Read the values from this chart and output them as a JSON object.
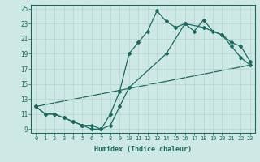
{
  "xlabel": "Humidex (Indice chaleur)",
  "xlim": [
    -0.5,
    23.5
  ],
  "ylim": [
    8.5,
    25.5
  ],
  "xticks": [
    0,
    1,
    2,
    3,
    4,
    5,
    6,
    7,
    8,
    9,
    10,
    11,
    12,
    13,
    14,
    15,
    16,
    17,
    18,
    19,
    20,
    21,
    22,
    23
  ],
  "yticks": [
    9,
    11,
    13,
    15,
    17,
    19,
    21,
    23,
    25
  ],
  "bg_color": "#cde8e5",
  "grid_color": "#b8d8d5",
  "line_color": "#1a6b5e",
  "line1_x": [
    0,
    1,
    2,
    3,
    4,
    5,
    6,
    7,
    8,
    9,
    10,
    11,
    12,
    13,
    14,
    15,
    16,
    17,
    18,
    19,
    20,
    21,
    22,
    23
  ],
  "line1_y": [
    12,
    11,
    11,
    10.5,
    10,
    9.5,
    9,
    9,
    11,
    14,
    19,
    20.5,
    22,
    24.7,
    23.3,
    22.5,
    23,
    22,
    23.5,
    22,
    21.5,
    20,
    18.5,
    17.5
  ],
  "line2_x": [
    0,
    1,
    2,
    3,
    4,
    5,
    6,
    7,
    8,
    9,
    10,
    14,
    16,
    18,
    20,
    21,
    22,
    23
  ],
  "line2_y": [
    12,
    11,
    11,
    10.5,
    10,
    9.5,
    9.5,
    9,
    9.5,
    12,
    14.5,
    19,
    23,
    22.5,
    21.5,
    20.5,
    20,
    18
  ],
  "line3_x": [
    0,
    23
  ],
  "line3_y": [
    12,
    17.5
  ]
}
